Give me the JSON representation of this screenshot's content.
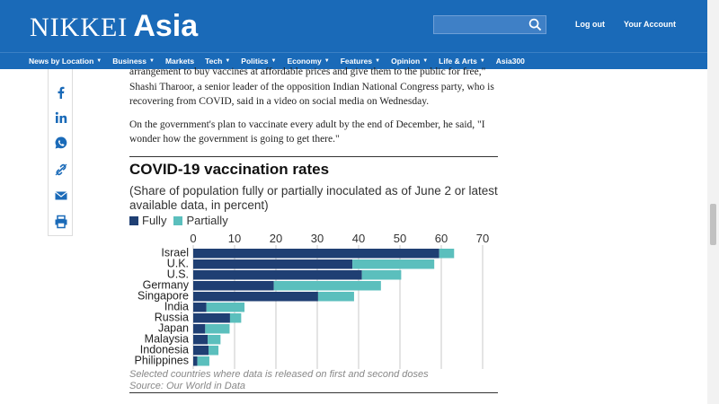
{
  "header": {
    "logo_nikkei": "NIKKEI",
    "logo_asia": "Asia",
    "search_placeholder": "",
    "logout": "Log out",
    "account": "Your Account",
    "brand_color": "#1a6ab8"
  },
  "nav": [
    {
      "label": "News by Location",
      "chevron": true
    },
    {
      "label": "Business",
      "chevron": true
    },
    {
      "label": "Markets",
      "chevron": false
    },
    {
      "label": "Tech",
      "chevron": true
    },
    {
      "label": "Politics",
      "chevron": true
    },
    {
      "label": "Economy",
      "chevron": true
    },
    {
      "label": "Features",
      "chevron": true
    },
    {
      "label": "Opinion",
      "chevron": true
    },
    {
      "label": "Life & Arts",
      "chevron": true
    },
    {
      "label": "Asia300",
      "chevron": false
    }
  ],
  "share_icons": [
    "facebook-icon",
    "linkedin-icon",
    "whatsapp-icon",
    "link-icon",
    "email-icon",
    "print-icon"
  ],
  "article": {
    "p1": "arrangement to buy vaccines at affordable prices and give them to the public for free,\" Shashi Tharoor, a senior leader of the opposition Indian National Congress party, who is recovering from COVID, said in a video on social media on Wednesday.",
    "p2": "On the government's plan to vaccinate every adult by the end of December, he said, \"I wonder how the government is going to get there.\""
  },
  "chart_data": {
    "type": "bar",
    "stacked": true,
    "orientation": "horizontal",
    "title": "COVID-19 vaccination rates",
    "subtitle": "(Share of population fully or partially inoculated as of June 2 or latest available data, in percent)",
    "categories": [
      "Israel",
      "U.K.",
      "U.S.",
      "Germany",
      "Singapore",
      "India",
      "Russia",
      "Japan",
      "Malaysia",
      "Indonesia",
      "Philippines"
    ],
    "series": [
      {
        "name": "Fully",
        "color": "#1f3f73",
        "values": [
          59.5,
          38.5,
          40.8,
          19.5,
          30.2,
          3.2,
          8.9,
          2.9,
          3.5,
          3.7,
          1.0
        ]
      },
      {
        "name": "Partially",
        "color": "#5bbfbd",
        "values": [
          3.6,
          19.8,
          9.5,
          25.9,
          8.7,
          9.2,
          2.7,
          5.9,
          3.1,
          2.4,
          2.9
        ]
      }
    ],
    "xlim": [
      0,
      70
    ],
    "xticks": [
      0,
      10,
      20,
      30,
      40,
      50,
      60,
      70
    ],
    "note": "Selected countries where data is released on first and second doses",
    "source": "Source: Our World in Data"
  }
}
